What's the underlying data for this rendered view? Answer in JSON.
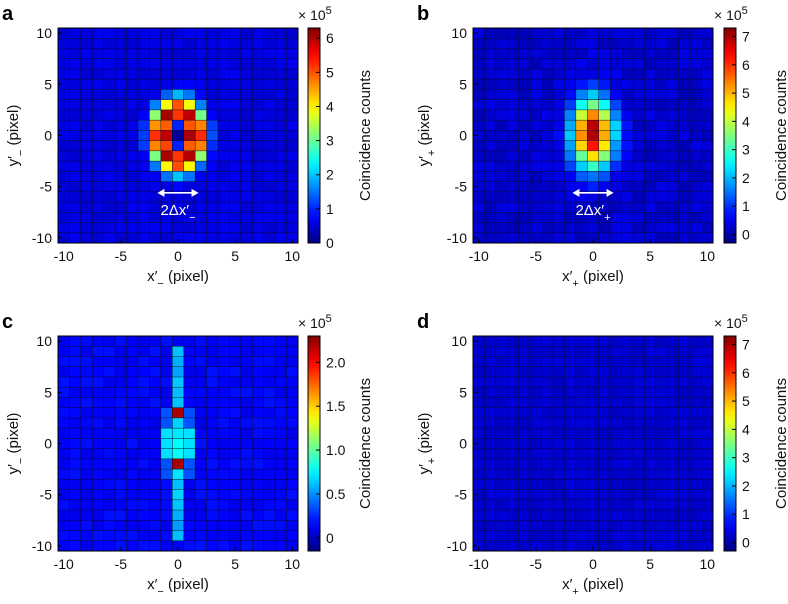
{
  "chart_data": [
    {
      "type": "heatmap",
      "panel": "a",
      "xlabel_main": "x′",
      "xlabel_sub": "−",
      "xlabel_unit": " (pixel)",
      "ylabel_main": "y′",
      "ylabel_sub": "−",
      "ylabel_unit": " (pixel)",
      "xlim": [
        -10,
        10
      ],
      "ylim": [
        -10,
        10
      ],
      "xticks": [
        "-10",
        "-5",
        "0",
        "5",
        "10"
      ],
      "yticks": [
        "-10",
        "-5",
        "0",
        "5",
        "10"
      ],
      "colorbar_label": "Coincidence counts",
      "colorbar_scale_base": "× 10",
      "colorbar_scale_exp": "5",
      "colorbar_ticks": [
        "0",
        "1",
        "2",
        "3",
        "4",
        "5",
        "6"
      ],
      "colorbar_tick_values": [
        0,
        1,
        2,
        3,
        4,
        5,
        6
      ],
      "vmin": 0,
      "vmax": 6.3,
      "annotation_main": "2Δx′",
      "annotation_sub": "−",
      "pattern": "ring",
      "peak": 6.0,
      "background": 0.6
    },
    {
      "type": "heatmap",
      "panel": "b",
      "xlabel_main": "x′",
      "xlabel_sub": "+",
      "xlabel_unit": " (pixel)",
      "ylabel_main": "y′",
      "ylabel_sub": "+",
      "ylabel_unit": " (pixel)",
      "xlim": [
        -10,
        10
      ],
      "ylim": [
        -10,
        10
      ],
      "xticks": [
        "-10",
        "-5",
        "0",
        "5",
        "10"
      ],
      "yticks": [
        "-10",
        "-5",
        "0",
        "5",
        "10"
      ],
      "colorbar_label": "Coincidence counts",
      "colorbar_scale_base": "× 10",
      "colorbar_scale_exp": "5",
      "colorbar_ticks": [
        "0",
        "1",
        "2",
        "3",
        "4",
        "5",
        "6",
        "7"
      ],
      "colorbar_tick_values": [
        0,
        1,
        2,
        3,
        4,
        5,
        6,
        7
      ],
      "vmin": -0.3,
      "vmax": 7.3,
      "annotation_main": "2Δx′",
      "annotation_sub": "+",
      "pattern": "blob",
      "peak": 7.1,
      "background": 0.3
    },
    {
      "type": "heatmap",
      "panel": "c",
      "xlabel_main": "x′",
      "xlabel_sub": "−",
      "xlabel_unit": " (pixel)",
      "ylabel_main": "y′",
      "ylabel_sub": "−",
      "ylabel_unit": " (pixel)",
      "xlim": [
        -10,
        10
      ],
      "ylim": [
        -10,
        10
      ],
      "xticks": [
        "-10",
        "-5",
        "0",
        "5",
        "10"
      ],
      "yticks": [
        "-10",
        "-5",
        "0",
        "5",
        "10"
      ],
      "colorbar_label": "Coincidence counts",
      "colorbar_scale_base": "× 10",
      "colorbar_scale_exp": "5",
      "colorbar_ticks": [
        "0",
        "0.5",
        "1.0",
        "1.5",
        "2.0"
      ],
      "colorbar_tick_values": [
        0,
        0.5,
        1.0,
        1.5,
        2.0
      ],
      "vmin": -0.15,
      "vmax": 2.3,
      "annotation_main": "",
      "annotation_sub": "",
      "pattern": "line",
      "peak": 2.2,
      "background": 0.15
    },
    {
      "type": "heatmap",
      "panel": "d",
      "xlabel_main": "x′",
      "xlabel_sub": "+",
      "xlabel_unit": " (pixel)",
      "ylabel_main": "y′",
      "ylabel_sub": "+",
      "ylabel_unit": " (pixel)",
      "xlim": [
        -10,
        10
      ],
      "ylim": [
        -10,
        10
      ],
      "xticks": [
        "-10",
        "-5",
        "0",
        "5",
        "10"
      ],
      "yticks": [
        "-10",
        "-5",
        "0",
        "5",
        "10"
      ],
      "colorbar_label": "Coincidence counts",
      "colorbar_scale_base": "× 10",
      "colorbar_scale_exp": "5",
      "colorbar_ticks": [
        "0",
        "1",
        "2",
        "3",
        "4",
        "5",
        "6",
        "7"
      ],
      "colorbar_tick_values": [
        0,
        1,
        2,
        3,
        4,
        5,
        6,
        7
      ],
      "vmin": -0.3,
      "vmax": 7.3,
      "annotation_main": "",
      "annotation_sub": "",
      "pattern": "flat",
      "peak": 0.3,
      "background": 0.3
    }
  ]
}
